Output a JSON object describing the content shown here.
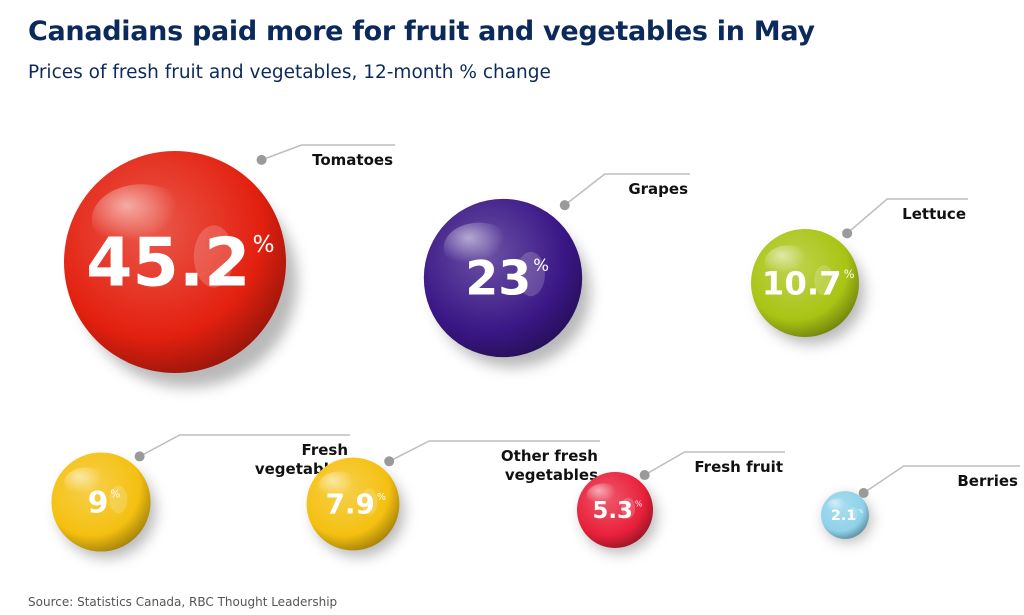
{
  "title": "Canadians paid more for fruit and vegetables in May",
  "subtitle": "Prices of fresh fruit and vegetables, 12-month % change",
  "source": "Source: Statistics Canada, RBC Thought Leadership",
  "chart_data": {
    "type": "bubble",
    "unit": "%",
    "items": [
      {
        "label": [
          "Tomatoes"
        ],
        "value": 45.2,
        "display": "45.2",
        "color": "#e3200f"
      },
      {
        "label": [
          "Grapes"
        ],
        "value": 23,
        "display": "23",
        "color": "#3a1786"
      },
      {
        "label": [
          "Lettuce"
        ],
        "value": 10.7,
        "display": "10.7",
        "color": "#a9c414"
      },
      {
        "label": [
          "Fresh",
          "vegetables"
        ],
        "value": 9,
        "display": "9",
        "color": "#f4c010"
      },
      {
        "label": [
          "Other fresh",
          "vegetables"
        ],
        "value": 7.9,
        "display": "7.9",
        "color": "#f4c010"
      },
      {
        "label": [
          "Fresh fruit"
        ],
        "value": 5.3,
        "display": "5.3",
        "color": "#e8203a"
      },
      {
        "label": [
          "Berries"
        ],
        "value": 2.1,
        "display": "2.1",
        "color": "#8ed2ea"
      }
    ]
  }
}
